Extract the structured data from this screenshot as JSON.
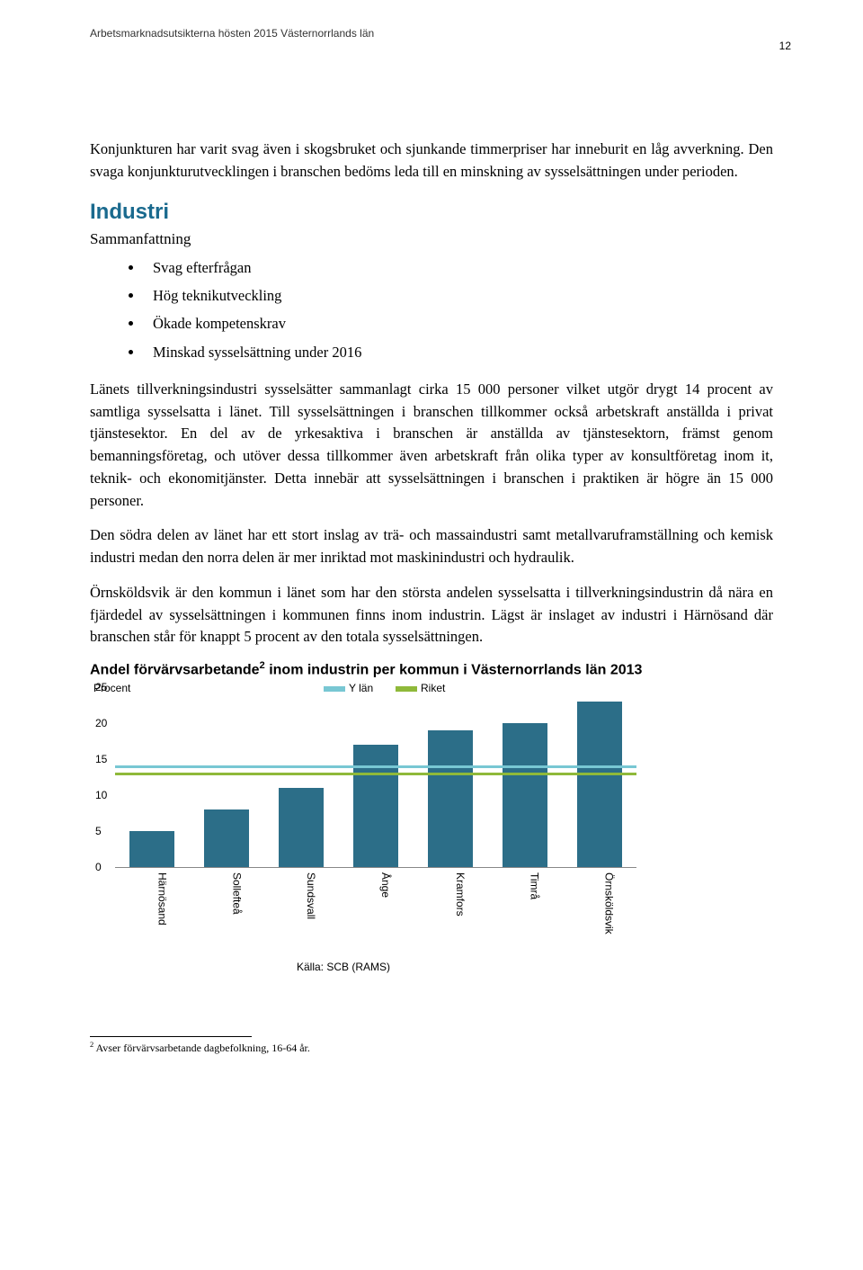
{
  "header": {
    "doc_title": "Arbetsmarknadsutsikterna hösten 2015 Västernorrlands län",
    "page_number": "12"
  },
  "para1": "Konjunkturen har varit svag även i skogsbruket och sjunkande timmerpriser har inneburit en låg avverkning. Den svaga konjunkturutvecklingen i branschen bedöms leda till en minskning av sysselsättningen under perioden.",
  "section": {
    "heading": "Industri",
    "subhead": "Sammanfattning",
    "bullets": [
      "Svag efterfrågan",
      "Hög teknikutveckling",
      "Ökade kompetenskrav",
      "Minskad sysselsättning under 2016"
    ]
  },
  "para2": "Länets tillverkningsindustri sysselsätter sammanlagt cirka 15 000 personer vilket utgör drygt 14 procent av samtliga sysselsatta i länet. Till sysselsättningen i branschen tillkommer också arbetskraft anställda i privat tjänstesektor. En del av de yrkesaktiva i branschen är anställda av tjänstesektorn, främst genom bemanningsföretag, och utöver dessa tillkommer även arbetskraft från olika typer av konsultföretag inom it, teknik- och ekonomitjänster. Detta innebär att sysselsättningen i branschen i praktiken är högre än 15 000 personer.",
  "para3": "Den södra delen av länet har ett stort inslag av trä- och massaindustri samt metallvaruframställning och kemisk industri medan den norra delen är mer inriktad mot maskinindustri och hydraulik.",
  "para4": "Örnsköldsvik är den kommun i länet som har den största andelen sysselsatta i tillverkningsindustrin då nära en fjärdedel av sysselsättningen i kommunen finns inom industrin. Lägst är inslaget av industri i Härnösand där branschen står för knappt 5 procent av den totala sysselsättningen.",
  "chart": {
    "title_pre": "Andel förvärvsarbetande",
    "title_sup": "2",
    "title_post": " inom industrin per kommun i Västernorrlands län 2013",
    "type": "bar",
    "procent_label": "Procent",
    "categories": [
      "Härnösand",
      "Sollefteå",
      "Sundsvall",
      "Ånge",
      "Kramfors",
      "Timrå",
      "Örnsköldsvik"
    ],
    "values": [
      5,
      8,
      11,
      17,
      19,
      20,
      23
    ],
    "bar_color": "#2c6e88",
    "ylim": [
      0,
      25
    ],
    "ytick_step": 5,
    "yticks": [
      "0",
      "5",
      "10",
      "15",
      "20",
      "25"
    ],
    "ref_lines": [
      {
        "label": "Y län",
        "value": 14,
        "color": "#78c7d3"
      },
      {
        "label": "Riket",
        "value": 13,
        "color": "#8fb93a"
      }
    ],
    "legend_items": [
      {
        "label": "Y län",
        "color": "#78c7d3"
      },
      {
        "label": "Riket",
        "color": "#8fb93a"
      }
    ],
    "background_color": "#ffffff",
    "axis_font_size": 12,
    "source": "Källa: SCB (RAMS)"
  },
  "footnote": {
    "num": "2",
    "text": " Avser förvärvsarbetande dagbefolkning, 16-64 år."
  }
}
